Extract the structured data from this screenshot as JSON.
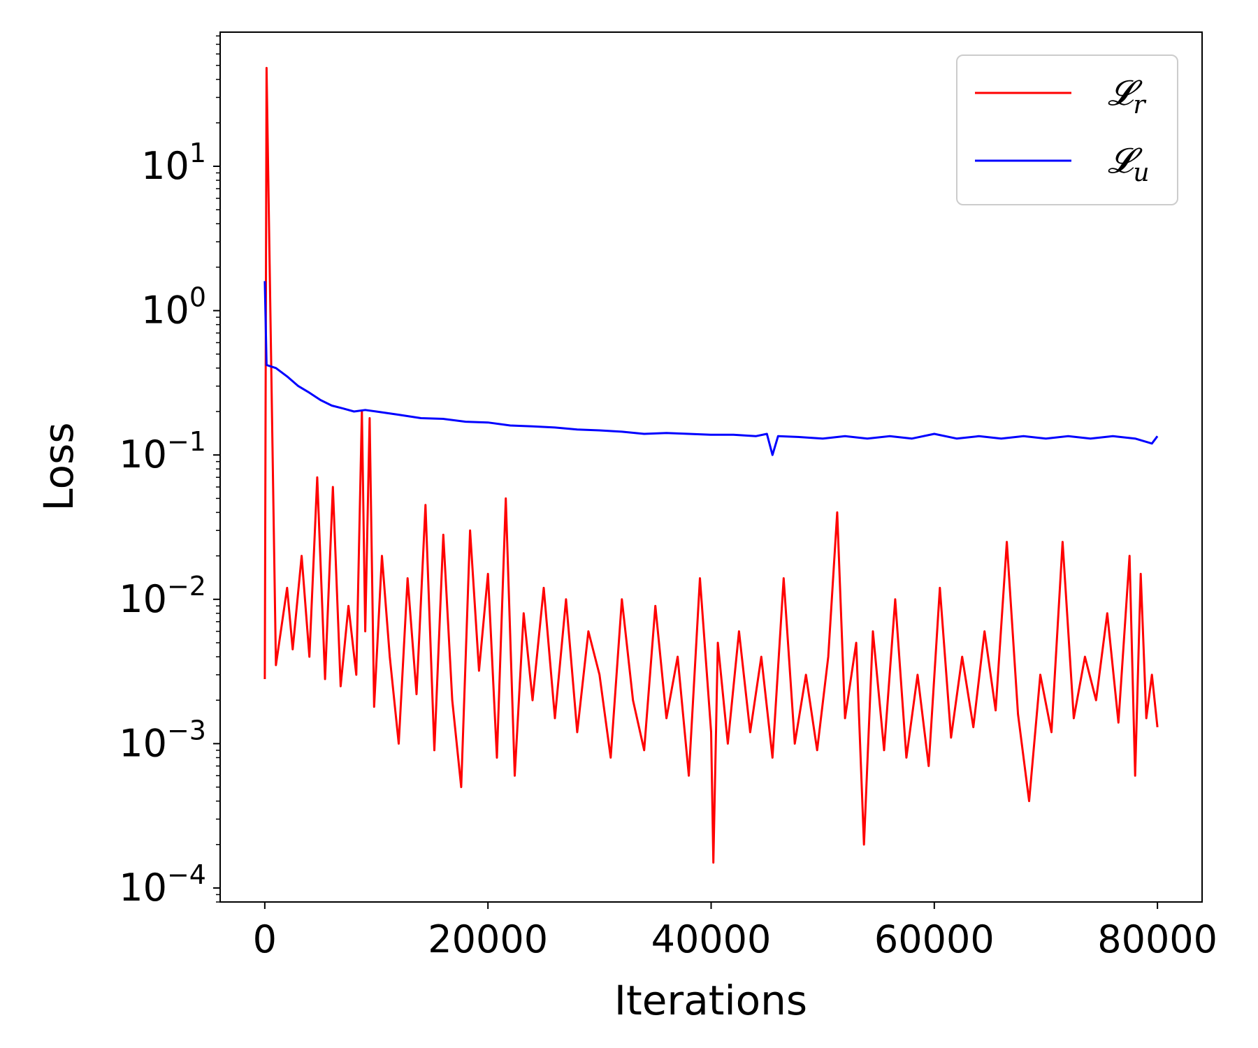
{
  "chart_data": {
    "type": "line",
    "title": "",
    "xlabel": "Iterations",
    "ylabel": "Loss",
    "xlim": [
      -4000,
      84000
    ],
    "ylim": [
      8e-05,
      85
    ],
    "yscale": "log",
    "x_ticks": [
      0,
      20000,
      40000,
      60000,
      80000
    ],
    "x_tick_labels": [
      "0",
      "20000",
      "40000",
      "60000",
      "80000"
    ],
    "y_ticks": [
      {
        "value": 0.0001,
        "base": "10",
        "exp": "−4"
      },
      {
        "value": 0.001,
        "base": "10",
        "exp": "−3"
      },
      {
        "value": 0.01,
        "base": "10",
        "exp": "−2"
      },
      {
        "value": 0.1,
        "base": "10",
        "exp": "−1"
      },
      {
        "value": 1,
        "base": "10",
        "exp": "0"
      },
      {
        "value": 10,
        "base": "10",
        "exp": "1"
      }
    ],
    "grid": false,
    "legend_position": "top-right",
    "series": [
      {
        "name": "𝓛r",
        "name_base": "𝓛",
        "name_sub": "r",
        "color": "#ff0000",
        "x": [
          0,
          160,
          1000,
          2000,
          2500,
          3300,
          4000,
          4700,
          5400,
          6100,
          6800,
          7500,
          8200,
          8700,
          9000,
          9400,
          9800,
          10500,
          11200,
          12000,
          12800,
          13600,
          14400,
          15200,
          16000,
          16800,
          17600,
          18400,
          19200,
          20000,
          20800,
          21600,
          22400,
          23200,
          24000,
          25000,
          26000,
          27000,
          28000,
          29000,
          30000,
          31000,
          32000,
          33000,
          34000,
          35000,
          36000,
          37000,
          38000,
          39000,
          40000,
          40200,
          40600,
          41500,
          42500,
          43500,
          44500,
          45500,
          46500,
          47500,
          48500,
          49500,
          50500,
          51300,
          52000,
          53000,
          53700,
          54500,
          55500,
          56500,
          57500,
          58500,
          59500,
          60500,
          61500,
          62500,
          63500,
          64500,
          65500,
          66500,
          67500,
          68500,
          69500,
          70500,
          71500,
          72500,
          73500,
          74500,
          75500,
          76500,
          77500,
          78000,
          78500,
          79000,
          79500,
          80000
        ],
        "values": [
          0.0028,
          48,
          0.0035,
          0.012,
          0.0045,
          0.02,
          0.004,
          0.07,
          0.0028,
          0.06,
          0.0025,
          0.009,
          0.003,
          0.2,
          0.006,
          0.18,
          0.0018,
          0.02,
          0.004,
          0.001,
          0.014,
          0.0022,
          0.045,
          0.0009,
          0.028,
          0.002,
          0.0005,
          0.03,
          0.0032,
          0.015,
          0.0008,
          0.05,
          0.0006,
          0.008,
          0.002,
          0.012,
          0.0015,
          0.01,
          0.0012,
          0.006,
          0.003,
          0.0008,
          0.01,
          0.002,
          0.0009,
          0.009,
          0.0015,
          0.004,
          0.0006,
          0.014,
          0.0012,
          0.00015,
          0.005,
          0.001,
          0.006,
          0.0012,
          0.004,
          0.0008,
          0.014,
          0.001,
          0.003,
          0.0009,
          0.004,
          0.04,
          0.0015,
          0.005,
          0.0002,
          0.006,
          0.0009,
          0.01,
          0.0008,
          0.003,
          0.0007,
          0.012,
          0.0011,
          0.004,
          0.0013,
          0.006,
          0.0017,
          0.025,
          0.0016,
          0.0004,
          0.003,
          0.0012,
          0.025,
          0.0015,
          0.004,
          0.002,
          0.008,
          0.0014,
          0.02,
          0.0006,
          0.015,
          0.0015,
          0.003,
          0.0013
        ]
      },
      {
        "name": "𝓛u",
        "name_base": "𝓛",
        "name_sub": "u",
        "color": "#0000ff",
        "x": [
          0,
          160,
          1000,
          2000,
          3000,
          4000,
          5000,
          6000,
          7000,
          8000,
          9000,
          10000,
          12000,
          14000,
          16000,
          18000,
          20000,
          22000,
          24000,
          26000,
          28000,
          30000,
          32000,
          34000,
          36000,
          38000,
          40000,
          42000,
          44000,
          45000,
          45500,
          46000,
          48000,
          50000,
          52000,
          54000,
          56000,
          58000,
          60000,
          62000,
          64000,
          66000,
          68000,
          70000,
          72000,
          74000,
          76000,
          78000,
          79500,
          80000
        ],
        "values": [
          1.6,
          0.42,
          0.4,
          0.35,
          0.3,
          0.27,
          0.24,
          0.22,
          0.21,
          0.2,
          0.205,
          0.2,
          0.19,
          0.18,
          0.178,
          0.17,
          0.168,
          0.16,
          0.158,
          0.155,
          0.15,
          0.148,
          0.145,
          0.14,
          0.142,
          0.14,
          0.138,
          0.138,
          0.135,
          0.14,
          0.1,
          0.135,
          0.133,
          0.13,
          0.135,
          0.13,
          0.135,
          0.13,
          0.14,
          0.13,
          0.135,
          0.13,
          0.135,
          0.13,
          0.135,
          0.13,
          0.135,
          0.13,
          0.12,
          0.135
        ]
      }
    ]
  }
}
